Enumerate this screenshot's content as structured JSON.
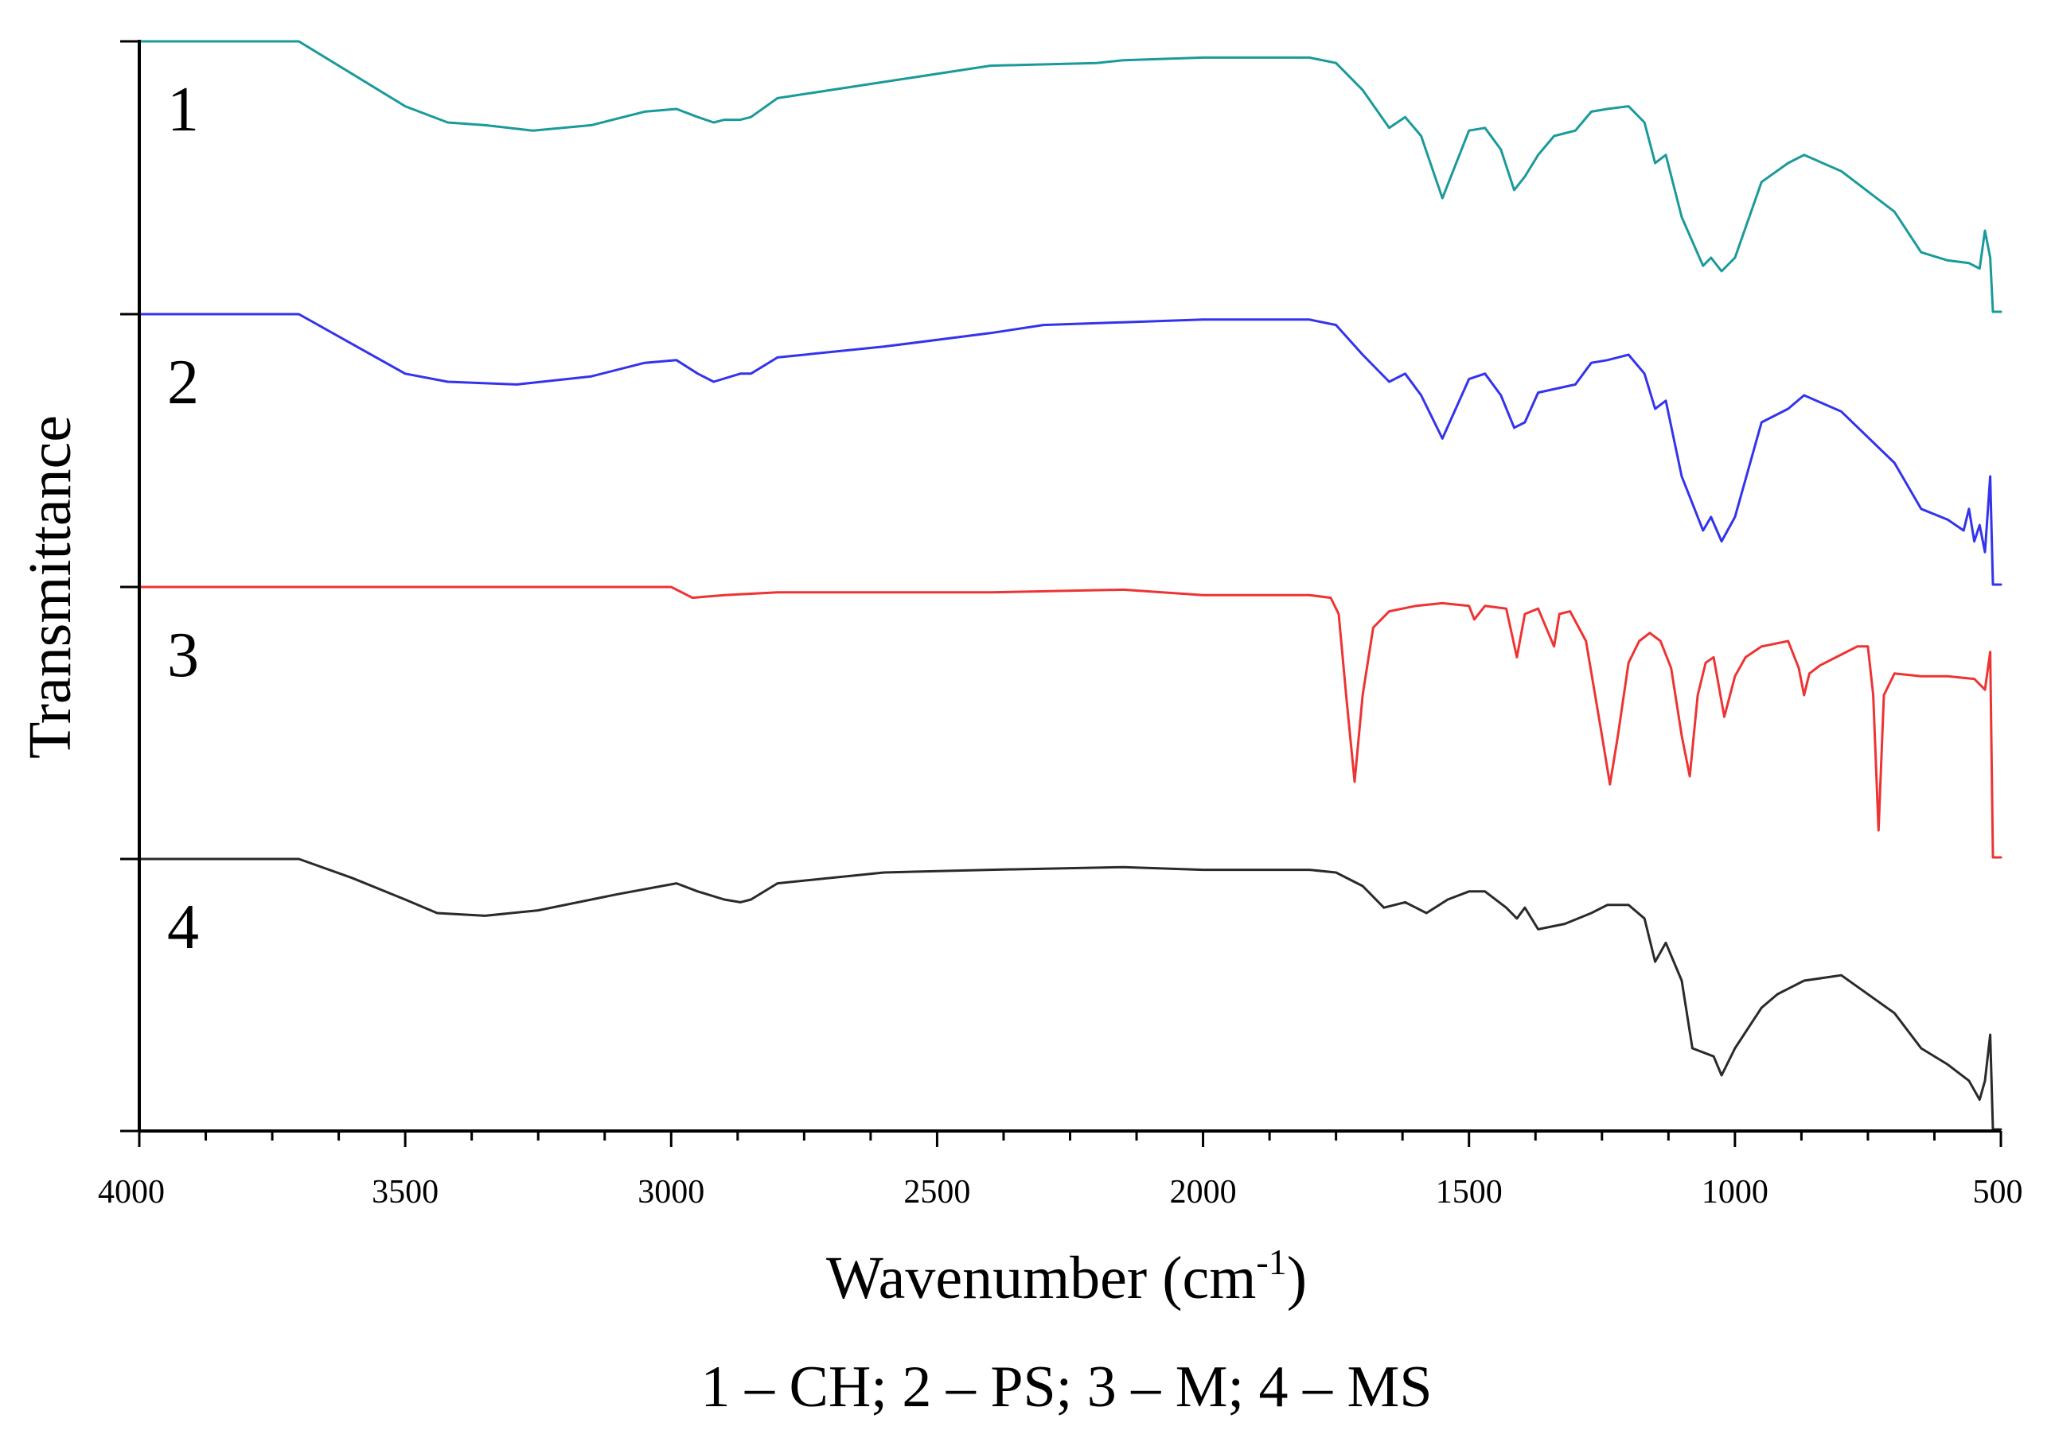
{
  "chart_data": {
    "type": "line",
    "title": "",
    "xlabel": "Wavenumber (cm",
    "xlabel_sup": "-1",
    "xlabel_end": ")",
    "ylabel": "Transmittance",
    "caption": "1 – CH; 2 – PS; 3 – M; 4 – MS",
    "xlim": [
      4000,
      500
    ],
    "x_ticks": [
      "4000",
      "3500",
      "3000",
      "2500",
      "2000",
      "1500",
      "1000",
      "500"
    ],
    "x_tick_values": [
      4000,
      3500,
      3000,
      2500,
      2000,
      1500,
      1000,
      500
    ],
    "grid": false,
    "legend": "inline labels at left",
    "offset_stacked": true,
    "series": [
      {
        "name": "1",
        "sample": "CH",
        "color": "#1a9a9a",
        "points": [
          [
            4000,
            0.0
          ],
          [
            3700,
            0.0
          ],
          [
            3600,
            0.12
          ],
          [
            3500,
            0.24
          ],
          [
            3420,
            0.3
          ],
          [
            3350,
            0.31
          ],
          [
            3260,
            0.33
          ],
          [
            3150,
            0.31
          ],
          [
            3050,
            0.26
          ],
          [
            2990,
            0.25
          ],
          [
            2950,
            0.28
          ],
          [
            2920,
            0.3
          ],
          [
            2900,
            0.29
          ],
          [
            2870,
            0.29
          ],
          [
            2850,
            0.28
          ],
          [
            2800,
            0.21
          ],
          [
            2600,
            0.15
          ],
          [
            2400,
            0.09
          ],
          [
            2200,
            0.08
          ],
          [
            2150,
            0.07
          ],
          [
            2000,
            0.06
          ],
          [
            1800,
            0.06
          ],
          [
            1750,
            0.08
          ],
          [
            1700,
            0.18
          ],
          [
            1650,
            0.32
          ],
          [
            1620,
            0.28
          ],
          [
            1590,
            0.35
          ],
          [
            1550,
            0.58
          ],
          [
            1500,
            0.33
          ],
          [
            1470,
            0.32
          ],
          [
            1440,
            0.4
          ],
          [
            1415,
            0.55
          ],
          [
            1395,
            0.5
          ],
          [
            1370,
            0.42
          ],
          [
            1340,
            0.35
          ],
          [
            1300,
            0.33
          ],
          [
            1270,
            0.26
          ],
          [
            1240,
            0.25
          ],
          [
            1200,
            0.24
          ],
          [
            1170,
            0.3
          ],
          [
            1150,
            0.45
          ],
          [
            1130,
            0.42
          ],
          [
            1100,
            0.65
          ],
          [
            1060,
            0.83
          ],
          [
            1045,
            0.8
          ],
          [
            1025,
            0.85
          ],
          [
            1000,
            0.8
          ],
          [
            950,
            0.52
          ],
          [
            900,
            0.45
          ],
          [
            870,
            0.42
          ],
          [
            800,
            0.48
          ],
          [
            700,
            0.63
          ],
          [
            650,
            0.78
          ],
          [
            600,
            0.81
          ],
          [
            560,
            0.82
          ],
          [
            540,
            0.84
          ],
          [
            530,
            0.7
          ],
          [
            520,
            0.8
          ],
          [
            515,
            1.0
          ],
          [
            500,
            1.0
          ]
        ]
      },
      {
        "name": "2",
        "sample": "PS",
        "color": "#3333ee",
        "points": [
          [
            4000,
            0.0
          ],
          [
            3700,
            0.0
          ],
          [
            3600,
            0.11
          ],
          [
            3500,
            0.22
          ],
          [
            3420,
            0.25
          ],
          [
            3290,
            0.26
          ],
          [
            3150,
            0.23
          ],
          [
            3050,
            0.18
          ],
          [
            2990,
            0.17
          ],
          [
            2950,
            0.22
          ],
          [
            2920,
            0.25
          ],
          [
            2870,
            0.22
          ],
          [
            2850,
            0.22
          ],
          [
            2800,
            0.16
          ],
          [
            2600,
            0.12
          ],
          [
            2400,
            0.07
          ],
          [
            2300,
            0.04
          ],
          [
            2150,
            0.03
          ],
          [
            2000,
            0.02
          ],
          [
            1800,
            0.02
          ],
          [
            1750,
            0.04
          ],
          [
            1700,
            0.15
          ],
          [
            1650,
            0.25
          ],
          [
            1620,
            0.22
          ],
          [
            1590,
            0.3
          ],
          [
            1550,
            0.46
          ],
          [
            1500,
            0.24
          ],
          [
            1470,
            0.22
          ],
          [
            1440,
            0.3
          ],
          [
            1415,
            0.42
          ],
          [
            1395,
            0.4
          ],
          [
            1370,
            0.29
          ],
          [
            1300,
            0.26
          ],
          [
            1270,
            0.18
          ],
          [
            1240,
            0.17
          ],
          [
            1200,
            0.15
          ],
          [
            1170,
            0.22
          ],
          [
            1150,
            0.35
          ],
          [
            1130,
            0.32
          ],
          [
            1100,
            0.6
          ],
          [
            1060,
            0.8
          ],
          [
            1045,
            0.75
          ],
          [
            1025,
            0.84
          ],
          [
            1000,
            0.75
          ],
          [
            950,
            0.4
          ],
          [
            900,
            0.35
          ],
          [
            870,
            0.3
          ],
          [
            800,
            0.36
          ],
          [
            700,
            0.55
          ],
          [
            650,
            0.72
          ],
          [
            600,
            0.76
          ],
          [
            570,
            0.8
          ],
          [
            560,
            0.72
          ],
          [
            550,
            0.84
          ],
          [
            540,
            0.78
          ],
          [
            530,
            0.88
          ],
          [
            520,
            0.6
          ],
          [
            515,
            1.0
          ],
          [
            500,
            1.0
          ]
        ]
      },
      {
        "name": "3",
        "sample": "M",
        "color": "#ee3333",
        "points": [
          [
            4000,
            0.0
          ],
          [
            3000,
            0.0
          ],
          [
            2960,
            0.04
          ],
          [
            2900,
            0.03
          ],
          [
            2800,
            0.02
          ],
          [
            2600,
            0.02
          ],
          [
            2400,
            0.02
          ],
          [
            2150,
            0.01
          ],
          [
            2000,
            0.03
          ],
          [
            1800,
            0.03
          ],
          [
            1760,
            0.04
          ],
          [
            1745,
            0.1
          ],
          [
            1730,
            0.42
          ],
          [
            1715,
            0.72
          ],
          [
            1700,
            0.4
          ],
          [
            1680,
            0.15
          ],
          [
            1650,
            0.09
          ],
          [
            1600,
            0.07
          ],
          [
            1550,
            0.06
          ],
          [
            1500,
            0.07
          ],
          [
            1490,
            0.12
          ],
          [
            1470,
            0.07
          ],
          [
            1430,
            0.08
          ],
          [
            1410,
            0.26
          ],
          [
            1395,
            0.1
          ],
          [
            1370,
            0.08
          ],
          [
            1340,
            0.22
          ],
          [
            1330,
            0.1
          ],
          [
            1310,
            0.09
          ],
          [
            1280,
            0.2
          ],
          [
            1250,
            0.55
          ],
          [
            1235,
            0.73
          ],
          [
            1220,
            0.55
          ],
          [
            1200,
            0.28
          ],
          [
            1180,
            0.2
          ],
          [
            1160,
            0.17
          ],
          [
            1140,
            0.2
          ],
          [
            1120,
            0.3
          ],
          [
            1100,
            0.55
          ],
          [
            1085,
            0.7
          ],
          [
            1070,
            0.4
          ],
          [
            1055,
            0.28
          ],
          [
            1040,
            0.26
          ],
          [
            1020,
            0.48
          ],
          [
            1000,
            0.33
          ],
          [
            980,
            0.26
          ],
          [
            950,
            0.22
          ],
          [
            900,
            0.2
          ],
          [
            880,
            0.3
          ],
          [
            870,
            0.4
          ],
          [
            860,
            0.32
          ],
          [
            840,
            0.29
          ],
          [
            800,
            0.25
          ],
          [
            770,
            0.22
          ],
          [
            750,
            0.22
          ],
          [
            740,
            0.4
          ],
          [
            730,
            0.9
          ],
          [
            720,
            0.4
          ],
          [
            700,
            0.32
          ],
          [
            650,
            0.33
          ],
          [
            600,
            0.33
          ],
          [
            550,
            0.34
          ],
          [
            530,
            0.38
          ],
          [
            520,
            0.24
          ],
          [
            515,
            1.0
          ],
          [
            500,
            1.0
          ]
        ]
      },
      {
        "name": "4",
        "sample": "MS",
        "color": "#2a2a2a",
        "points": [
          [
            4000,
            0.0
          ],
          [
            3700,
            0.0
          ],
          [
            3600,
            0.07
          ],
          [
            3500,
            0.15
          ],
          [
            3440,
            0.2
          ],
          [
            3350,
            0.21
          ],
          [
            3250,
            0.19
          ],
          [
            3100,
            0.13
          ],
          [
            2990,
            0.09
          ],
          [
            2950,
            0.12
          ],
          [
            2900,
            0.15
          ],
          [
            2870,
            0.16
          ],
          [
            2850,
            0.15
          ],
          [
            2800,
            0.09
          ],
          [
            2600,
            0.05
          ],
          [
            2400,
            0.04
          ],
          [
            2150,
            0.03
          ],
          [
            2000,
            0.04
          ],
          [
            1800,
            0.04
          ],
          [
            1750,
            0.05
          ],
          [
            1700,
            0.1
          ],
          [
            1660,
            0.18
          ],
          [
            1620,
            0.16
          ],
          [
            1580,
            0.2
          ],
          [
            1540,
            0.15
          ],
          [
            1500,
            0.12
          ],
          [
            1470,
            0.12
          ],
          [
            1430,
            0.18
          ],
          [
            1410,
            0.22
          ],
          [
            1395,
            0.18
          ],
          [
            1370,
            0.26
          ],
          [
            1320,
            0.24
          ],
          [
            1270,
            0.2
          ],
          [
            1240,
            0.17
          ],
          [
            1200,
            0.17
          ],
          [
            1170,
            0.22
          ],
          [
            1150,
            0.38
          ],
          [
            1130,
            0.31
          ],
          [
            1100,
            0.45
          ],
          [
            1080,
            0.7
          ],
          [
            1040,
            0.73
          ],
          [
            1025,
            0.8
          ],
          [
            1000,
            0.7
          ],
          [
            950,
            0.55
          ],
          [
            920,
            0.5
          ],
          [
            900,
            0.48
          ],
          [
            870,
            0.45
          ],
          [
            800,
            0.43
          ],
          [
            700,
            0.57
          ],
          [
            650,
            0.7
          ],
          [
            600,
            0.76
          ],
          [
            560,
            0.82
          ],
          [
            540,
            0.89
          ],
          [
            530,
            0.82
          ],
          [
            520,
            0.65
          ],
          [
            515,
            1.0
          ],
          [
            500,
            1.0
          ]
        ]
      }
    ]
  }
}
